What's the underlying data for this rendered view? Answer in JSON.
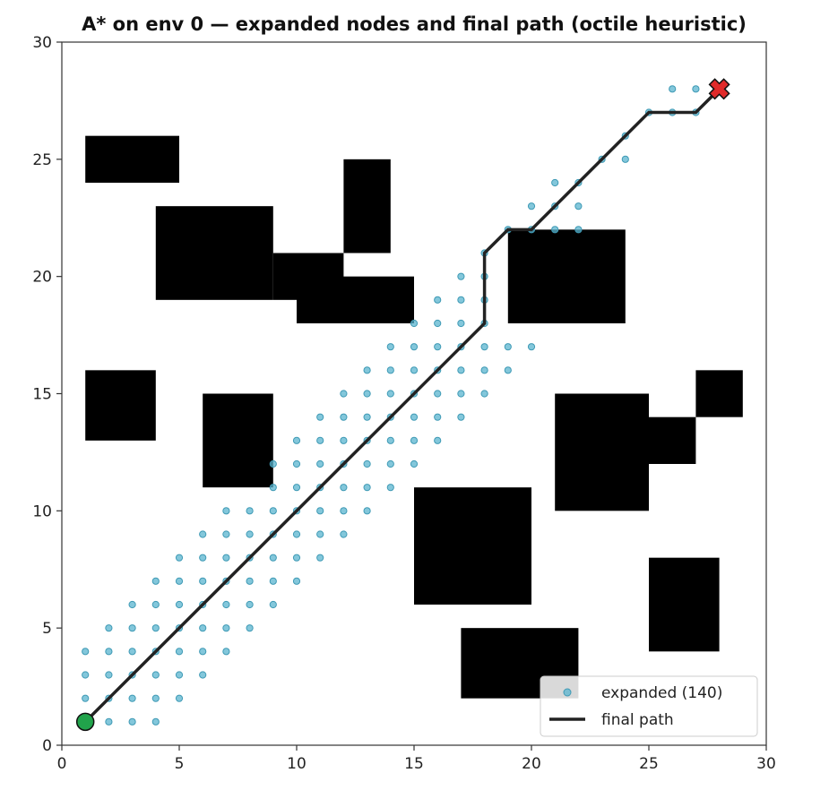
{
  "chart_data": {
    "type": "scatter",
    "title": "A* on env 0 — expanded nodes and final path  (octile heuristic)",
    "xlabel": "",
    "ylabel": "",
    "xlim": [
      0,
      30
    ],
    "ylim": [
      0,
      30
    ],
    "xticks": [
      "0",
      "5",
      "10",
      "15",
      "20",
      "25",
      "30"
    ],
    "yticks": [
      "0",
      "5",
      "10",
      "15",
      "20",
      "25",
      "30"
    ],
    "grid": false,
    "legend_position": "lower-right",
    "colors": {
      "expanded": "#5ab4cf",
      "path": "#222222",
      "obstacle": "#000000",
      "start": "#21a34b",
      "goal": "#e02a2a"
    },
    "obstacles": [
      [
        1,
        24,
        5,
        26
      ],
      [
        4,
        19,
        9,
        23
      ],
      [
        9,
        19,
        12,
        21
      ],
      [
        10,
        18,
        15,
        20
      ],
      [
        12,
        21,
        14,
        25
      ],
      [
        1,
        13,
        4,
        16
      ],
      [
        6,
        11,
        9,
        15
      ],
      [
        19,
        18,
        24,
        22
      ],
      [
        21,
        10,
        25,
        15
      ],
      [
        25,
        12,
        27,
        14
      ],
      [
        27,
        14,
        29,
        16
      ],
      [
        15,
        6,
        20,
        11
      ],
      [
        25,
        4,
        28,
        8
      ],
      [
        17,
        2,
        22,
        5
      ]
    ],
    "series": [
      {
        "name": "expanded (140)",
        "kind": "scatter",
        "points": [
          [
            1,
            2
          ],
          [
            1,
            3
          ],
          [
            1,
            4
          ],
          [
            2,
            1
          ],
          [
            2,
            2
          ],
          [
            2,
            3
          ],
          [
            2,
            4
          ],
          [
            2,
            5
          ],
          [
            3,
            1
          ],
          [
            3,
            2
          ],
          [
            3,
            3
          ],
          [
            3,
            4
          ],
          [
            3,
            5
          ],
          [
            3,
            6
          ],
          [
            4,
            1
          ],
          [
            4,
            2
          ],
          [
            4,
            3
          ],
          [
            4,
            4
          ],
          [
            4,
            5
          ],
          [
            4,
            6
          ],
          [
            4,
            7
          ],
          [
            5,
            2
          ],
          [
            5,
            3
          ],
          [
            5,
            4
          ],
          [
            5,
            5
          ],
          [
            5,
            6
          ],
          [
            5,
            7
          ],
          [
            5,
            8
          ],
          [
            6,
            3
          ],
          [
            6,
            4
          ],
          [
            6,
            5
          ],
          [
            6,
            6
          ],
          [
            6,
            7
          ],
          [
            6,
            8
          ],
          [
            6,
            9
          ],
          [
            7,
            4
          ],
          [
            7,
            5
          ],
          [
            7,
            6
          ],
          [
            7,
            7
          ],
          [
            7,
            8
          ],
          [
            7,
            9
          ],
          [
            7,
            10
          ],
          [
            8,
            5
          ],
          [
            8,
            6
          ],
          [
            8,
            7
          ],
          [
            8,
            8
          ],
          [
            8,
            9
          ],
          [
            8,
            10
          ],
          [
            9,
            6
          ],
          [
            9,
            7
          ],
          [
            9,
            8
          ],
          [
            9,
            9
          ],
          [
            9,
            10
          ],
          [
            9,
            11
          ],
          [
            9,
            12
          ],
          [
            10,
            7
          ],
          [
            10,
            8
          ],
          [
            10,
            9
          ],
          [
            10,
            10
          ],
          [
            10,
            11
          ],
          [
            10,
            12
          ],
          [
            10,
            13
          ],
          [
            11,
            8
          ],
          [
            11,
            9
          ],
          [
            11,
            10
          ],
          [
            11,
            11
          ],
          [
            11,
            12
          ],
          [
            11,
            13
          ],
          [
            11,
            14
          ],
          [
            12,
            9
          ],
          [
            12,
            10
          ],
          [
            12,
            11
          ],
          [
            12,
            12
          ],
          [
            12,
            13
          ],
          [
            12,
            14
          ],
          [
            12,
            15
          ],
          [
            13,
            10
          ],
          [
            13,
            11
          ],
          [
            13,
            12
          ],
          [
            13,
            13
          ],
          [
            13,
            14
          ],
          [
            13,
            15
          ],
          [
            13,
            16
          ],
          [
            14,
            11
          ],
          [
            14,
            12
          ],
          [
            14,
            13
          ],
          [
            14,
            14
          ],
          [
            14,
            15
          ],
          [
            14,
            16
          ],
          [
            14,
            17
          ],
          [
            15,
            12
          ],
          [
            15,
            13
          ],
          [
            15,
            14
          ],
          [
            15,
            15
          ],
          [
            15,
            16
          ],
          [
            15,
            17
          ],
          [
            15,
            18
          ],
          [
            16,
            13
          ],
          [
            16,
            14
          ],
          [
            16,
            15
          ],
          [
            16,
            16
          ],
          [
            16,
            17
          ],
          [
            16,
            18
          ],
          [
            16,
            19
          ],
          [
            17,
            14
          ],
          [
            17,
            15
          ],
          [
            17,
            16
          ],
          [
            17,
            17
          ],
          [
            17,
            18
          ],
          [
            17,
            19
          ],
          [
            17,
            20
          ],
          [
            18,
            15
          ],
          [
            18,
            16
          ],
          [
            18,
            17
          ],
          [
            18,
            18
          ],
          [
            18,
            19
          ],
          [
            18,
            20
          ],
          [
            18,
            21
          ],
          [
            19,
            16
          ],
          [
            19,
            17
          ],
          [
            19,
            22
          ],
          [
            20,
            17
          ],
          [
            20,
            22
          ],
          [
            20,
            23
          ],
          [
            21,
            22
          ],
          [
            21,
            23
          ],
          [
            21,
            24
          ],
          [
            22,
            22
          ],
          [
            22,
            23
          ],
          [
            22,
            24
          ],
          [
            23,
            25
          ],
          [
            24,
            25
          ],
          [
            24,
            26
          ],
          [
            25,
            27
          ],
          [
            26,
            27
          ],
          [
            26,
            28
          ],
          [
            27,
            27
          ],
          [
            27,
            28
          ]
        ]
      },
      {
        "name": "final path",
        "kind": "line",
        "points": [
          [
            1,
            1
          ],
          [
            18,
            18
          ],
          [
            18,
            21
          ],
          [
            19,
            22
          ],
          [
            20,
            22
          ],
          [
            25,
            27
          ],
          [
            27,
            27
          ],
          [
            28,
            28
          ]
        ]
      }
    ],
    "start": [
      1,
      1
    ],
    "goal": [
      28,
      28
    ]
  }
}
